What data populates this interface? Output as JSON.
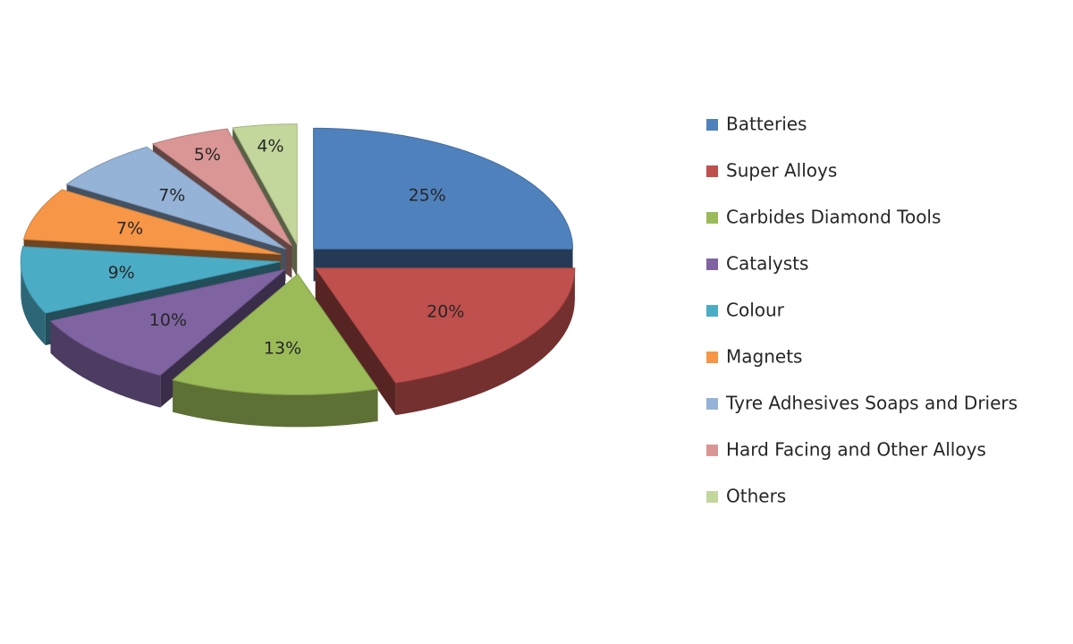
{
  "chart_data": {
    "type": "pie",
    "categories": [
      "Batteries",
      "Super Alloys",
      "Carbides Diamond Tools",
      "Catalysts",
      "Colour",
      "Magnets",
      "Tyre Adhesives Soaps and Driers",
      "Hard Facing and Other Alloys",
      "Others"
    ],
    "values": [
      25,
      20,
      13,
      10,
      9,
      7,
      7,
      5,
      4
    ],
    "value_labels": [
      "25%",
      "20%",
      "13%",
      "10%",
      "9%",
      "7%",
      "7%",
      "5%",
      "4%"
    ],
    "colors": [
      "#4f81bd",
      "#c0504d",
      "#9bbb59",
      "#8064a2",
      "#4bacc6",
      "#f79646",
      "#95b3d7",
      "#d99694",
      "#c3d69b"
    ],
    "legend": "right"
  }
}
